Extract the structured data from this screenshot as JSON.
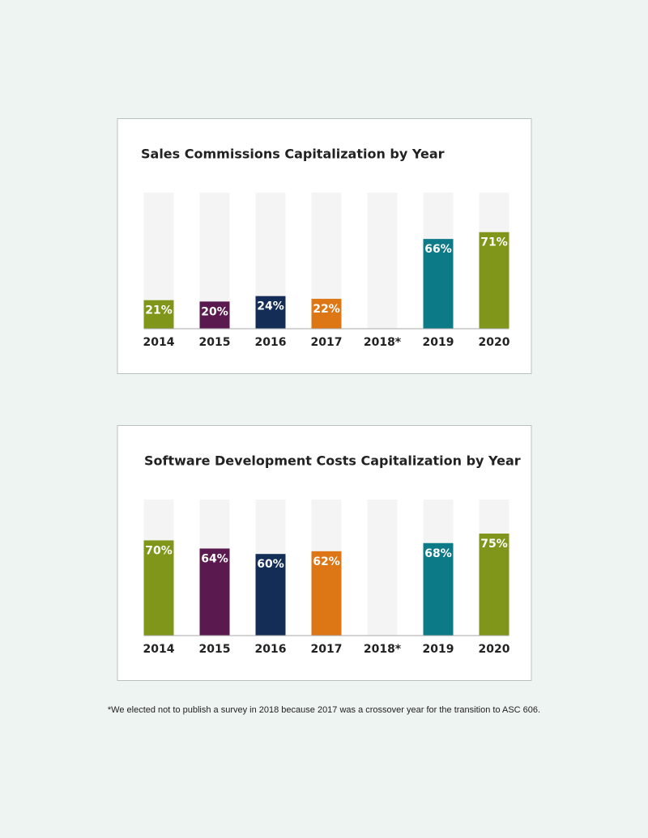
{
  "chart_data": [
    {
      "type": "bar",
      "title": "Sales Commissions Capitalization by Year",
      "categories": [
        "2014",
        "2015",
        "2016",
        "2017",
        "2018*",
        "2019",
        "2020"
      ],
      "values": [
        21,
        20,
        24,
        22,
        null,
        66,
        71
      ],
      "value_labels": [
        "21%",
        "20%",
        "24%",
        "22%",
        null,
        "66%",
        "71%"
      ],
      "colors": [
        "#7f961a",
        "#5a1a4f",
        "#132d57",
        "#dd7716",
        null,
        "#0d7a88",
        "#7f961a"
      ],
      "ylim": [
        0,
        100
      ]
    },
    {
      "type": "bar",
      "title": "Software Development Costs Capitalization by Year",
      "categories": [
        "2014",
        "2015",
        "2016",
        "2017",
        "2018*",
        "2019",
        "2020"
      ],
      "values": [
        70,
        64,
        60,
        62,
        null,
        68,
        75
      ],
      "value_labels": [
        "70%",
        "64%",
        "60%",
        "62%",
        null,
        "68%",
        "75%"
      ],
      "colors": [
        "#7f961a",
        "#5a1a4f",
        "#132d57",
        "#dd7716",
        null,
        "#0d7a88",
        "#7f961a"
      ],
      "ylim": [
        0,
        100
      ]
    }
  ],
  "footnote": "*We elected not to publish a survey in 2018 because 2017 was a crossover year for the transition to ASC 606."
}
